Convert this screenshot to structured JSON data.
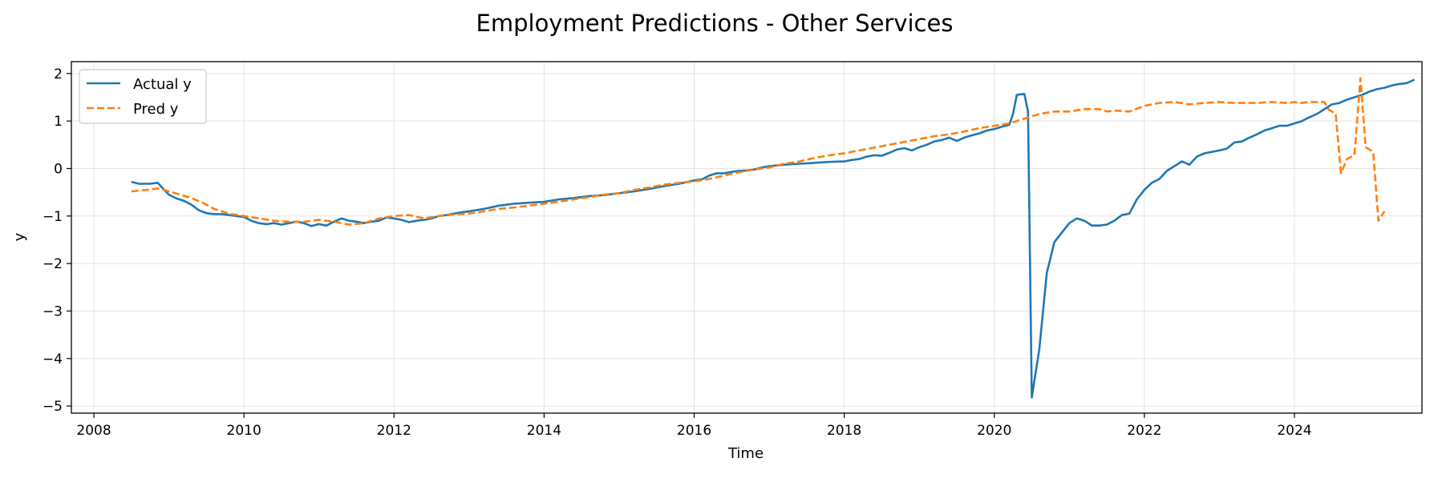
{
  "chart_data": {
    "type": "line",
    "title": "Employment Predictions - Other Services",
    "xlabel": "Time",
    "ylabel": "y",
    "xlim": [
      2007.7,
      2025.7
    ],
    "ylim": [
      -5.15,
      2.25
    ],
    "xticks": [
      2008,
      2010,
      2012,
      2014,
      2016,
      2018,
      2020,
      2022,
      2024
    ],
    "xtick_labels": [
      "2008",
      "2010",
      "2012",
      "2014",
      "2016",
      "2018",
      "2020",
      "2022",
      "2024"
    ],
    "yticks": [
      2,
      1,
      0,
      -1,
      -2,
      -3,
      -4,
      -5
    ],
    "ytick_labels": [
      "2",
      "1",
      "0",
      "−1",
      "−2",
      "−3",
      "−4",
      "−5"
    ],
    "grid": true,
    "legend_position": "upper-left",
    "series": [
      {
        "name": "Actual y",
        "color": "#1f77b4",
        "style": "solid",
        "points": [
          [
            2008.5,
            -0.28
          ],
          [
            2008.6,
            -0.32
          ],
          [
            2008.75,
            -0.32
          ],
          [
            2008.85,
            -0.3
          ],
          [
            2008.92,
            -0.42
          ],
          [
            2009.0,
            -0.55
          ],
          [
            2009.1,
            -0.63
          ],
          [
            2009.2,
            -0.68
          ],
          [
            2009.3,
            -0.76
          ],
          [
            2009.4,
            -0.88
          ],
          [
            2009.5,
            -0.94
          ],
          [
            2009.6,
            -0.96
          ],
          [
            2009.7,
            -0.96
          ],
          [
            2009.8,
            -0.98
          ],
          [
            2009.9,
            -1.0
          ],
          [
            2010.0,
            -1.02
          ],
          [
            2010.1,
            -1.1
          ],
          [
            2010.2,
            -1.15
          ],
          [
            2010.3,
            -1.17
          ],
          [
            2010.4,
            -1.15
          ],
          [
            2010.5,
            -1.18
          ],
          [
            2010.6,
            -1.15
          ],
          [
            2010.7,
            -1.12
          ],
          [
            2010.8,
            -1.15
          ],
          [
            2010.9,
            -1.21
          ],
          [
            2011.0,
            -1.17
          ],
          [
            2011.1,
            -1.2
          ],
          [
            2011.2,
            -1.12
          ],
          [
            2011.3,
            -1.05
          ],
          [
            2011.4,
            -1.1
          ],
          [
            2011.5,
            -1.12
          ],
          [
            2011.6,
            -1.15
          ],
          [
            2011.7,
            -1.12
          ],
          [
            2011.8,
            -1.1
          ],
          [
            2011.9,
            -1.03
          ],
          [
            2012.0,
            -1.05
          ],
          [
            2012.1,
            -1.08
          ],
          [
            2012.2,
            -1.13
          ],
          [
            2012.3,
            -1.1
          ],
          [
            2012.4,
            -1.08
          ],
          [
            2012.5,
            -1.05
          ],
          [
            2012.6,
            -1.0
          ],
          [
            2012.7,
            -0.98
          ],
          [
            2012.8,
            -0.95
          ],
          [
            2012.9,
            -0.92
          ],
          [
            2013.0,
            -0.9
          ],
          [
            2013.2,
            -0.85
          ],
          [
            2013.4,
            -0.78
          ],
          [
            2013.6,
            -0.74
          ],
          [
            2013.8,
            -0.72
          ],
          [
            2014.0,
            -0.7
          ],
          [
            2014.2,
            -0.65
          ],
          [
            2014.4,
            -0.62
          ],
          [
            2014.6,
            -0.58
          ],
          [
            2014.8,
            -0.56
          ],
          [
            2015.0,
            -0.52
          ],
          [
            2015.2,
            -0.48
          ],
          [
            2015.4,
            -0.43
          ],
          [
            2015.6,
            -0.37
          ],
          [
            2015.8,
            -0.32
          ],
          [
            2016.0,
            -0.25
          ],
          [
            2016.1,
            -0.23
          ],
          [
            2016.2,
            -0.15
          ],
          [
            2016.3,
            -0.1
          ],
          [
            2016.4,
            -0.1
          ],
          [
            2016.5,
            -0.07
          ],
          [
            2016.6,
            -0.05
          ],
          [
            2016.7,
            -0.04
          ],
          [
            2016.8,
            -0.02
          ],
          [
            2016.9,
            0.02
          ],
          [
            2017.0,
            0.05
          ],
          [
            2017.2,
            0.08
          ],
          [
            2017.4,
            0.1
          ],
          [
            2017.6,
            0.12
          ],
          [
            2017.8,
            0.14
          ],
          [
            2018.0,
            0.15
          ],
          [
            2018.1,
            0.18
          ],
          [
            2018.2,
            0.2
          ],
          [
            2018.3,
            0.25
          ],
          [
            2018.4,
            0.28
          ],
          [
            2018.5,
            0.27
          ],
          [
            2018.6,
            0.33
          ],
          [
            2018.7,
            0.4
          ],
          [
            2018.8,
            0.43
          ],
          [
            2018.9,
            0.38
          ],
          [
            2019.0,
            0.45
          ],
          [
            2019.1,
            0.5
          ],
          [
            2019.2,
            0.57
          ],
          [
            2019.3,
            0.6
          ],
          [
            2019.4,
            0.65
          ],
          [
            2019.5,
            0.58
          ],
          [
            2019.6,
            0.65
          ],
          [
            2019.7,
            0.7
          ],
          [
            2019.8,
            0.74
          ],
          [
            2019.9,
            0.8
          ],
          [
            2020.0,
            0.83
          ],
          [
            2020.1,
            0.88
          ],
          [
            2020.2,
            0.92
          ],
          [
            2020.25,
            1.15
          ],
          [
            2020.3,
            1.55
          ],
          [
            2020.4,
            1.57
          ],
          [
            2020.45,
            1.2
          ],
          [
            2020.5,
            -4.82
          ],
          [
            2020.6,
            -3.8
          ],
          [
            2020.7,
            -2.2
          ],
          [
            2020.8,
            -1.55
          ],
          [
            2020.9,
            -1.35
          ],
          [
            2021.0,
            -1.15
          ],
          [
            2021.1,
            -1.05
          ],
          [
            2021.2,
            -1.1
          ],
          [
            2021.3,
            -1.2
          ],
          [
            2021.4,
            -1.2
          ],
          [
            2021.5,
            -1.18
          ],
          [
            2021.6,
            -1.1
          ],
          [
            2021.7,
            -0.98
          ],
          [
            2021.8,
            -0.95
          ],
          [
            2021.9,
            -0.65
          ],
          [
            2022.0,
            -0.45
          ],
          [
            2022.1,
            -0.3
          ],
          [
            2022.2,
            -0.22
          ],
          [
            2022.3,
            -0.05
          ],
          [
            2022.4,
            0.05
          ],
          [
            2022.5,
            0.15
          ],
          [
            2022.6,
            0.08
          ],
          [
            2022.7,
            0.25
          ],
          [
            2022.8,
            0.32
          ],
          [
            2022.9,
            0.35
          ],
          [
            2023.0,
            0.38
          ],
          [
            2023.1,
            0.42
          ],
          [
            2023.2,
            0.55
          ],
          [
            2023.3,
            0.57
          ],
          [
            2023.4,
            0.65
          ],
          [
            2023.5,
            0.72
          ],
          [
            2023.6,
            0.8
          ],
          [
            2023.7,
            0.85
          ],
          [
            2023.8,
            0.9
          ],
          [
            2023.9,
            0.9
          ],
          [
            2024.0,
            0.95
          ],
          [
            2024.1,
            1.0
          ],
          [
            2024.2,
            1.08
          ],
          [
            2024.3,
            1.15
          ],
          [
            2024.4,
            1.25
          ],
          [
            2024.5,
            1.35
          ],
          [
            2024.6,
            1.38
          ],
          [
            2024.7,
            1.45
          ],
          [
            2024.8,
            1.5
          ],
          [
            2024.9,
            1.55
          ],
          [
            2025.0,
            1.62
          ],
          [
            2025.1,
            1.67
          ],
          [
            2025.2,
            1.7
          ],
          [
            2025.3,
            1.75
          ],
          [
            2025.4,
            1.78
          ],
          [
            2025.5,
            1.8
          ],
          [
            2025.6,
            1.87
          ]
        ]
      },
      {
        "name": "Pred y",
        "color": "#ff7f0e",
        "style": "dashed",
        "points": [
          [
            2008.5,
            -0.48
          ],
          [
            2008.7,
            -0.45
          ],
          [
            2008.85,
            -0.42
          ],
          [
            2009.0,
            -0.48
          ],
          [
            2009.15,
            -0.55
          ],
          [
            2009.3,
            -0.62
          ],
          [
            2009.45,
            -0.72
          ],
          [
            2009.6,
            -0.85
          ],
          [
            2009.8,
            -0.95
          ],
          [
            2010.0,
            -1.0
          ],
          [
            2010.2,
            -1.05
          ],
          [
            2010.4,
            -1.1
          ],
          [
            2010.6,
            -1.12
          ],
          [
            2010.8,
            -1.12
          ],
          [
            2011.0,
            -1.08
          ],
          [
            2011.2,
            -1.12
          ],
          [
            2011.4,
            -1.18
          ],
          [
            2011.6,
            -1.15
          ],
          [
            2011.8,
            -1.05
          ],
          [
            2012.0,
            -1.0
          ],
          [
            2012.2,
            -0.98
          ],
          [
            2012.4,
            -1.05
          ],
          [
            2012.6,
            -1.0
          ],
          [
            2012.8,
            -0.97
          ],
          [
            2013.0,
            -0.95
          ],
          [
            2013.2,
            -0.9
          ],
          [
            2013.4,
            -0.85
          ],
          [
            2013.6,
            -0.82
          ],
          [
            2013.8,
            -0.78
          ],
          [
            2014.0,
            -0.74
          ],
          [
            2014.2,
            -0.7
          ],
          [
            2014.4,
            -0.65
          ],
          [
            2014.6,
            -0.6
          ],
          [
            2014.8,
            -0.55
          ],
          [
            2015.0,
            -0.52
          ],
          [
            2015.2,
            -0.45
          ],
          [
            2015.4,
            -0.4
          ],
          [
            2015.6,
            -0.34
          ],
          [
            2015.8,
            -0.3
          ],
          [
            2016.0,
            -0.27
          ],
          [
            2016.2,
            -0.22
          ],
          [
            2016.4,
            -0.15
          ],
          [
            2016.6,
            -0.08
          ],
          [
            2016.8,
            -0.02
          ],
          [
            2017.0,
            0.02
          ],
          [
            2017.2,
            0.1
          ],
          [
            2017.4,
            0.15
          ],
          [
            2017.6,
            0.22
          ],
          [
            2017.8,
            0.28
          ],
          [
            2018.0,
            0.32
          ],
          [
            2018.2,
            0.38
          ],
          [
            2018.4,
            0.44
          ],
          [
            2018.6,
            0.5
          ],
          [
            2018.8,
            0.56
          ],
          [
            2019.0,
            0.62
          ],
          [
            2019.2,
            0.68
          ],
          [
            2019.4,
            0.72
          ],
          [
            2019.6,
            0.78
          ],
          [
            2019.8,
            0.85
          ],
          [
            2020.0,
            0.9
          ],
          [
            2020.2,
            0.95
          ],
          [
            2020.4,
            1.05
          ],
          [
            2020.6,
            1.15
          ],
          [
            2020.8,
            1.2
          ],
          [
            2021.0,
            1.2
          ],
          [
            2021.2,
            1.25
          ],
          [
            2021.4,
            1.25
          ],
          [
            2021.5,
            1.2
          ],
          [
            2021.6,
            1.22
          ],
          [
            2021.8,
            1.2
          ],
          [
            2022.0,
            1.32
          ],
          [
            2022.2,
            1.38
          ],
          [
            2022.4,
            1.4
          ],
          [
            2022.6,
            1.35
          ],
          [
            2022.8,
            1.38
          ],
          [
            2023.0,
            1.4
          ],
          [
            2023.2,
            1.38
          ],
          [
            2023.4,
            1.38
          ],
          [
            2023.5,
            1.38
          ],
          [
            2023.7,
            1.4
          ],
          [
            2023.9,
            1.38
          ],
          [
            2024.0,
            1.4
          ],
          [
            2024.1,
            1.38
          ],
          [
            2024.2,
            1.4
          ],
          [
            2024.4,
            1.4
          ],
          [
            2024.45,
            1.25
          ],
          [
            2024.55,
            1.15
          ],
          [
            2024.62,
            -0.1
          ],
          [
            2024.7,
            0.2
          ],
          [
            2024.8,
            0.28
          ],
          [
            2024.88,
            1.9
          ],
          [
            2024.95,
            0.45
          ],
          [
            2025.05,
            0.35
          ],
          [
            2025.12,
            -1.1
          ],
          [
            2025.2,
            -0.9
          ]
        ]
      }
    ]
  }
}
